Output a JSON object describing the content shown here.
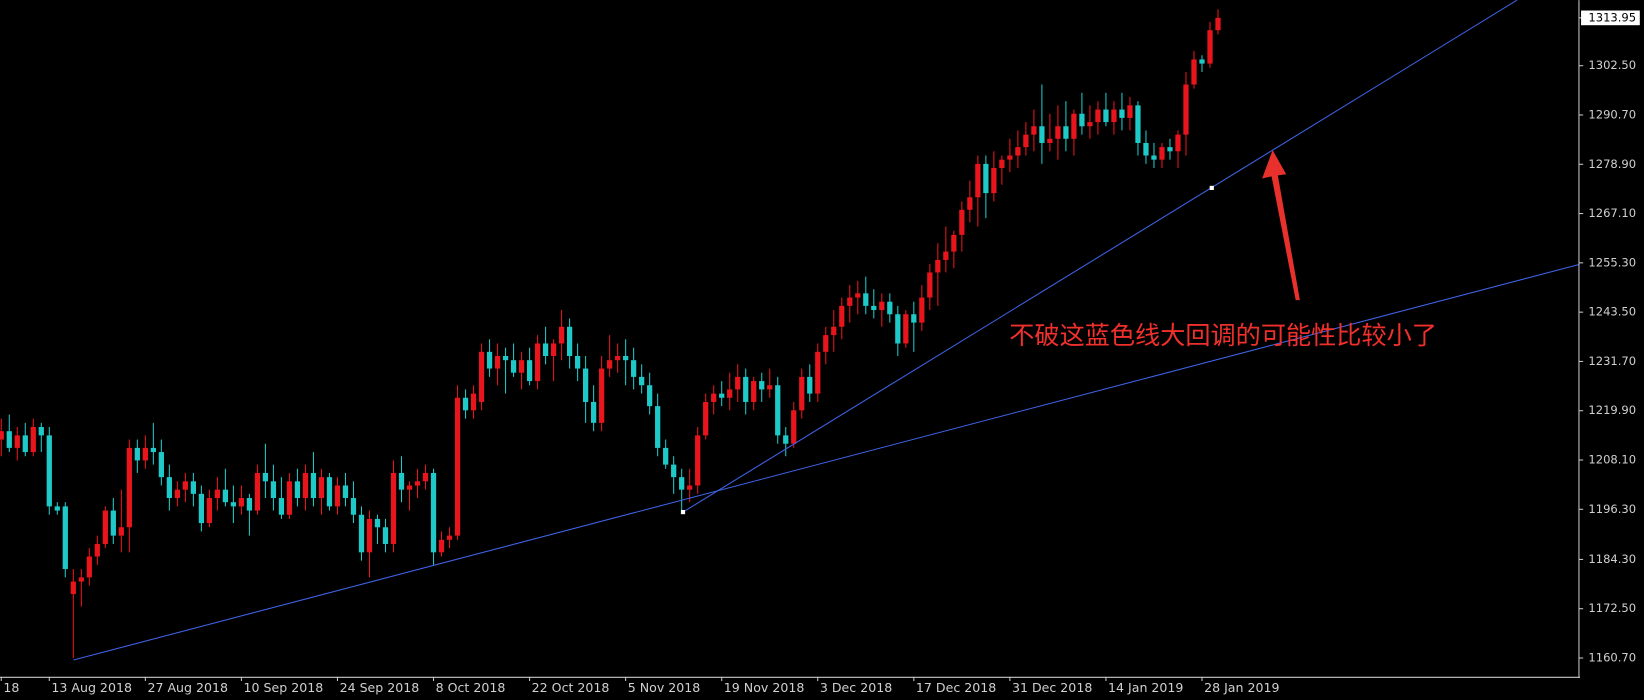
{
  "chart_data": {
    "type": "candlestick",
    "categories": [
      "18",
      null,
      null,
      null,
      null,
      null,
      "13 Aug 2018",
      null,
      null,
      null,
      null,
      null,
      null,
      null,
      null,
      null,
      null,
      null,
      "27 Aug 2018",
      null,
      null,
      null,
      null,
      null,
      null,
      null,
      null,
      null,
      null,
      null,
      "10 Sep 2018",
      null,
      null,
      null,
      null,
      null,
      null,
      null,
      null,
      null,
      null,
      null,
      "24 Sep 2018",
      null,
      null,
      null,
      null,
      null,
      null,
      null,
      null,
      null,
      null,
      null,
      "8 Oct 2018",
      null,
      null,
      null,
      null,
      null,
      null,
      null,
      null,
      null,
      null,
      null,
      "22 Oct 2018",
      null,
      null,
      null,
      null,
      null,
      null,
      null,
      null,
      null,
      null,
      null,
      "5 Nov 2018",
      null,
      null,
      null,
      null,
      null,
      null,
      null,
      null,
      null,
      null,
      null,
      "19 Nov 2018",
      null,
      null,
      null,
      null,
      null,
      null,
      null,
      null,
      null,
      null,
      null,
      "3 Dec 2018",
      null,
      null,
      null,
      null,
      null,
      null,
      null,
      null,
      null,
      null,
      null,
      "17 Dec 2018",
      null,
      null,
      null,
      null,
      null,
      null,
      null,
      null,
      null,
      null,
      null,
      "31 Dec 2018",
      null,
      null,
      null,
      null,
      null,
      null,
      null,
      null,
      null,
      null,
      null,
      "14 Jan 2019",
      null,
      null,
      null,
      null,
      null,
      null,
      null,
      null,
      null,
      null,
      null,
      "28 Jan 2019",
      null,
      null
    ],
    "ohlc": [
      [
        1213,
        1218,
        1209,
        1215
      ],
      [
        1215,
        1219,
        1210,
        1211
      ],
      [
        1211,
        1216,
        1208,
        1214
      ],
      [
        1214,
        1217,
        1209,
        1210
      ],
      [
        1210,
        1218,
        1209,
        1216
      ],
      [
        1216,
        1217,
        1210,
        1214
      ],
      [
        1214,
        1216,
        1195,
        1197
      ],
      [
        1197,
        1198,
        1195,
        1196
      ],
      [
        1197,
        1198,
        1180,
        1182
      ],
      [
        1176,
        1182,
        1160.7,
        1179
      ],
      [
        1179,
        1182,
        1173,
        1180
      ],
      [
        1180,
        1187,
        1178,
        1185
      ],
      [
        1185,
        1190,
        1183,
        1188
      ],
      [
        1188,
        1197,
        1187,
        1196
      ],
      [
        1196,
        1199,
        1188,
        1190
      ],
      [
        1190,
        1201,
        1186,
        1192
      ],
      [
        1192,
        1213,
        1186,
        1211
      ],
      [
        1211,
        1213,
        1205,
        1208
      ],
      [
        1208,
        1214,
        1206,
        1211
      ],
      [
        1211,
        1217,
        1207,
        1210
      ],
      [
        1210,
        1213,
        1202,
        1204
      ],
      [
        1204,
        1207,
        1196,
        1199
      ],
      [
        1199,
        1203,
        1197,
        1201
      ],
      [
        1201,
        1205,
        1198,
        1203
      ],
      [
        1203,
        1205,
        1197,
        1200
      ],
      [
        1200,
        1202,
        1191,
        1193
      ],
      [
        1193,
        1201,
        1192,
        1199
      ],
      [
        1199,
        1204,
        1196,
        1201
      ],
      [
        1201,
        1206,
        1197,
        1198
      ],
      [
        1198,
        1202,
        1193,
        1197
      ],
      [
        1197,
        1202,
        1195,
        1199
      ],
      [
        1199,
        1200,
        1190,
        1196
      ],
      [
        1196,
        1207,
        1195,
        1205
      ],
      [
        1205,
        1212,
        1199,
        1203
      ],
      [
        1203,
        1207,
        1196,
        1199
      ],
      [
        1199,
        1204,
        1194,
        1195
      ],
      [
        1195,
        1205,
        1194,
        1203
      ],
      [
        1203,
        1206,
        1197,
        1199
      ],
      [
        1199,
        1207,
        1196,
        1205
      ],
      [
        1205,
        1210,
        1197,
        1199
      ],
      [
        1199,
        1206,
        1195,
        1204
      ],
      [
        1204,
        1205,
        1196,
        1197
      ],
      [
        1197,
        1204,
        1195,
        1202
      ],
      [
        1202,
        1205,
        1197,
        1199
      ],
      [
        1199,
        1203,
        1193,
        1195
      ],
      [
        1195,
        1197,
        1184,
        1186
      ],
      [
        1186,
        1196,
        1180,
        1194
      ],
      [
        1194,
        1195,
        1188,
        1192
      ],
      [
        1192,
        1194,
        1186,
        1188
      ],
      [
        1188,
        1208,
        1186,
        1205
      ],
      [
        1205,
        1209,
        1198,
        1201
      ],
      [
        1201,
        1203,
        1196,
        1202
      ],
      [
        1202,
        1206,
        1199,
        1203
      ],
      [
        1203,
        1207,
        1201,
        1205
      ],
      [
        1205,
        1206,
        1183,
        1186
      ],
      [
        1186,
        1191,
        1185,
        1189
      ],
      [
        1189,
        1192,
        1187,
        1190
      ],
      [
        1190,
        1226,
        1189,
        1223
      ],
      [
        1223,
        1225,
        1218,
        1220
      ],
      [
        1220,
        1226,
        1218,
        1224
      ],
      [
        1222,
        1236,
        1220,
        1234
      ],
      [
        1234,
        1237,
        1228,
        1230
      ],
      [
        1230,
        1236,
        1226,
        1233
      ],
      [
        1233,
        1235,
        1224,
        1232
      ],
      [
        1232,
        1236,
        1228,
        1229
      ],
      [
        1229,
        1234,
        1225,
        1232
      ],
      [
        1232,
        1235,
        1226,
        1227
      ],
      [
        1227,
        1238,
        1225,
        1236
      ],
      [
        1236,
        1240,
        1231,
        1233
      ],
      [
        1233,
        1237,
        1227,
        1236
      ],
      [
        1236,
        1244,
        1232,
        1240
      ],
      [
        1240,
        1242,
        1230,
        1233
      ],
      [
        1233,
        1236,
        1227,
        1230
      ],
      [
        1230,
        1233,
        1217,
        1222
      ],
      [
        1222,
        1226,
        1215,
        1217
      ],
      [
        1217,
        1233,
        1215,
        1230
      ],
      [
        1230,
        1238,
        1228,
        1232
      ],
      [
        1232,
        1236,
        1229,
        1233
      ],
      [
        1233,
        1237,
        1226,
        1232
      ],
      [
        1232,
        1235,
        1225,
        1228
      ],
      [
        1228,
        1231,
        1224,
        1226
      ],
      [
        1226,
        1229,
        1219,
        1221
      ],
      [
        1221,
        1224,
        1209,
        1211
      ],
      [
        1211,
        1213,
        1206,
        1207
      ],
      [
        1207,
        1209,
        1200,
        1204
      ],
      [
        1204,
        1206,
        1196,
        1201
      ],
      [
        1201,
        1206,
        1198,
        1202
      ],
      [
        1202,
        1216,
        1200,
        1214
      ],
      [
        1214,
        1224,
        1213,
        1222
      ],
      [
        1222,
        1226,
        1219,
        1224
      ],
      [
        1224,
        1227,
        1221,
        1223
      ],
      [
        1223,
        1229,
        1220,
        1225
      ],
      [
        1225,
        1231,
        1222,
        1228
      ],
      [
        1228,
        1230,
        1219,
        1222
      ],
      [
        1222,
        1228,
        1220,
        1227
      ],
      [
        1227,
        1229,
        1222,
        1225
      ],
      [
        1225,
        1230,
        1223,
        1226
      ],
      [
        1226,
        1228,
        1212,
        1214
      ],
      [
        1214,
        1216,
        1209,
        1212
      ],
      [
        1212,
        1222,
        1211,
        1220
      ],
      [
        1220,
        1230,
        1218,
        1228
      ],
      [
        1228,
        1231,
        1222,
        1224
      ],
      [
        1224,
        1236,
        1222,
        1234
      ],
      [
        1234,
        1240,
        1231,
        1238
      ],
      [
        1238,
        1244,
        1234,
        1240
      ],
      [
        1240,
        1247,
        1237,
        1245
      ],
      [
        1245,
        1250,
        1241,
        1247
      ],
      [
        1247,
        1251,
        1243,
        1248
      ],
      [
        1248,
        1252,
        1243,
        1245
      ],
      [
        1245,
        1249,
        1242,
        1244
      ],
      [
        1244,
        1248,
        1240,
        1246
      ],
      [
        1246,
        1248,
        1241,
        1243
      ],
      [
        1243,
        1245,
        1233,
        1236
      ],
      [
        1236,
        1244,
        1235,
        1243
      ],
      [
        1243,
        1246,
        1234,
        1241
      ],
      [
        1241,
        1250,
        1239,
        1247
      ],
      [
        1247,
        1255,
        1244,
        1253
      ],
      [
        1253,
        1260,
        1245,
        1256
      ],
      [
        1256,
        1264,
        1253,
        1258
      ],
      [
        1258,
        1263,
        1254,
        1262
      ],
      [
        1262,
        1270,
        1258,
        1268
      ],
      [
        1268,
        1275,
        1265,
        1271
      ],
      [
        1271,
        1281,
        1264,
        1279
      ],
      [
        1279,
        1281,
        1266,
        1272
      ],
      [
        1272,
        1282,
        1270,
        1278
      ],
      [
        1278,
        1281,
        1274,
        1280
      ],
      [
        1280,
        1285,
        1277,
        1281
      ],
      [
        1281,
        1287,
        1278,
        1283
      ],
      [
        1283,
        1289,
        1281,
        1286
      ],
      [
        1286,
        1292,
        1282,
        1288
      ],
      [
        1288,
        1298,
        1279,
        1284
      ],
      [
        1284,
        1291,
        1282,
        1285
      ],
      [
        1285,
        1293,
        1280,
        1288
      ],
      [
        1288,
        1294,
        1282,
        1285
      ],
      [
        1285,
        1292,
        1281,
        1291
      ],
      [
        1291,
        1296,
        1286,
        1288
      ],
      [
        1288,
        1293,
        1285,
        1289
      ],
      [
        1289,
        1294,
        1286,
        1292
      ],
      [
        1292,
        1296,
        1288,
        1289
      ],
      [
        1289,
        1294,
        1286,
        1292
      ],
      [
        1292,
        1296,
        1287,
        1290
      ],
      [
        1290,
        1295,
        1287,
        1293
      ],
      [
        1293,
        1294,
        1281,
        1284
      ],
      [
        1284,
        1287,
        1279,
        1281
      ],
      [
        1281,
        1284,
        1278,
        1280
      ],
      [
        1280,
        1284,
        1278,
        1283
      ],
      [
        1283,
        1285,
        1280,
        1282
      ],
      [
        1282,
        1287,
        1278,
        1286
      ],
      [
        1286,
        1301,
        1281,
        1298
      ],
      [
        1298,
        1306,
        1297,
        1304
      ],
      [
        1304,
        1305,
        1301,
        1303
      ],
      [
        1303,
        1313,
        1302,
        1311
      ],
      [
        1311,
        1316,
        1310,
        1313.95
      ]
    ],
    "ylim": [
      1156.2,
      1318.2
    ],
    "yticks": [
      1313.95,
      {
        "value": 1302.5,
        "label": "1302.50"
      },
      {
        "value": 1290.7,
        "label": "1290.70"
      },
      {
        "value": 1278.9,
        "label": "1278.90"
      },
      {
        "value": 1267.1,
        "label": "1267.10"
      },
      {
        "value": 1255.3,
        "label": "1255.30"
      },
      {
        "value": 1243.5,
        "label": "1243.50"
      },
      {
        "value": 1231.7,
        "label": "1231.70"
      },
      {
        "value": 1219.9,
        "label": "1219.90"
      },
      {
        "value": 1208.1,
        "label": "1208.10"
      },
      {
        "value": 1196.3,
        "label": "1196.30"
      },
      {
        "value": 1184.3,
        "label": "1184.30"
      },
      {
        "value": 1172.5,
        "label": "1172.50"
      },
      {
        "value": 1160.7,
        "label": "1160.70"
      }
    ],
    "colors": {
      "up": "#e8161c",
      "down": "#1fc9c8"
    },
    "annotation": "不破这蓝色线大回调的可能性比较小了"
  }
}
